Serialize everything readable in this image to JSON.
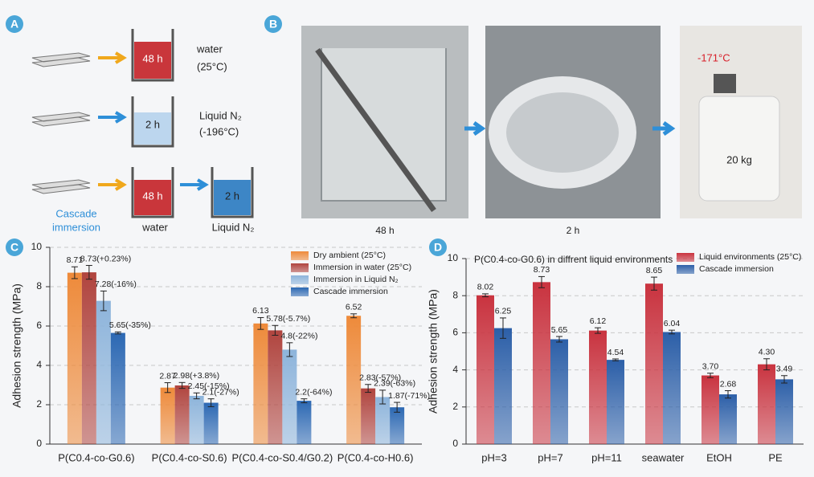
{
  "panel_a": {
    "label": "A",
    "row1": {
      "time": "48 h",
      "condition": [
        "water",
        "(25°C)"
      ]
    },
    "row2": {
      "time": "2 h",
      "condition": [
        "Liquid N₂",
        "(-196°C)"
      ]
    },
    "row3": {
      "name": [
        "Cascade",
        "immersion"
      ],
      "time1": "48 h",
      "time2": "2 h",
      "step1": "water",
      "step2": "Liquid N₂"
    }
  },
  "panel_b": {
    "label": "B",
    "captions": [
      "48 h",
      "2 h"
    ],
    "thermometer": "-171°C",
    "weight": "20 kg"
  },
  "chart_data": [
    {
      "type": "bar",
      "panel_label": "C",
      "ylabel": "Adhesion strength (MPa)",
      "categories": [
        "P(C0.4-co-G0.6)",
        "P(C0.4-co-S0.6)",
        "P(C0.4-co-S0.4/G0.2)",
        "P(C0.4-co-H0.6)"
      ],
      "series": [
        {
          "name": "Dry ambient (25°C)",
          "color": "#ee8a3a",
          "values": [
            8.71,
            2.87,
            6.13,
            6.52
          ],
          "errors": [
            0.3,
            0.25,
            0.3,
            0.1
          ]
        },
        {
          "name": "Immersion in water (25°C)",
          "color": "#b0443e",
          "values": [
            8.73,
            2.98,
            5.78,
            2.83
          ],
          "errors": [
            0.35,
            0.15,
            0.25,
            0.2
          ],
          "value_labels": [
            "8.73(+0.23%)",
            "2.98(+3.8%)",
            "5.78(-5.7%)",
            "2.83(-57%)"
          ]
        },
        {
          "name": "Immersion in Liquid N₂",
          "color": "#8db4db",
          "values": [
            7.28,
            2.45,
            4.8,
            2.39
          ],
          "errors": [
            0.5,
            0.15,
            0.35,
            0.35
          ],
          "value_labels": [
            "7.28(-16%)",
            "2.45(-15%)",
            "4.8(-22%)",
            "2.39(-63%)"
          ]
        },
        {
          "name": "Cascade immersion",
          "color": "#2c68b3",
          "values": [
            5.65,
            2.1,
            2.2,
            1.87
          ],
          "errors": [
            0.05,
            0.2,
            0.1,
            0.25
          ],
          "value_labels": [
            "5.65(-35%)",
            "2.1(-27%)",
            "2.2(-64%)",
            "1.87(-71%)"
          ]
        }
      ],
      "ylim": [
        0,
        10
      ],
      "yticks": [
        0,
        2,
        4,
        6,
        8,
        10
      ],
      "grid": true,
      "legend": "upper right"
    },
    {
      "type": "bar",
      "panel_label": "D",
      "title": "P(C0.4-co-G0.6) in diffrent liquid environments",
      "ylabel": "Adhesion strength (MPa)",
      "categories": [
        "pH=3",
        "pH=7",
        "pH=11",
        "seawater",
        "EtOH",
        "PE"
      ],
      "series": [
        {
          "name": "Liquid environments (25°C)",
          "color": "#c9333f",
          "values": [
            8.02,
            8.73,
            6.12,
            8.65,
            3.7,
            4.3
          ],
          "errors": [
            0.08,
            0.3,
            0.15,
            0.35,
            0.12,
            0.3
          ],
          "value_labels": [
            "8.02",
            "8.73",
            "6.12",
            "8.65",
            "3.70",
            "4.30"
          ]
        },
        {
          "name": "Cascade immersion",
          "color": "#2c5fa8",
          "values": [
            6.25,
            5.65,
            4.54,
            6.04,
            2.68,
            3.49
          ],
          "errors": [
            0.55,
            0.15,
            0.05,
            0.1,
            0.2,
            0.2
          ]
        }
      ],
      "ylim": [
        0,
        10
      ],
      "yticks": [
        0,
        2,
        4,
        6,
        8,
        10
      ],
      "grid": true,
      "legend": "upper right"
    }
  ]
}
